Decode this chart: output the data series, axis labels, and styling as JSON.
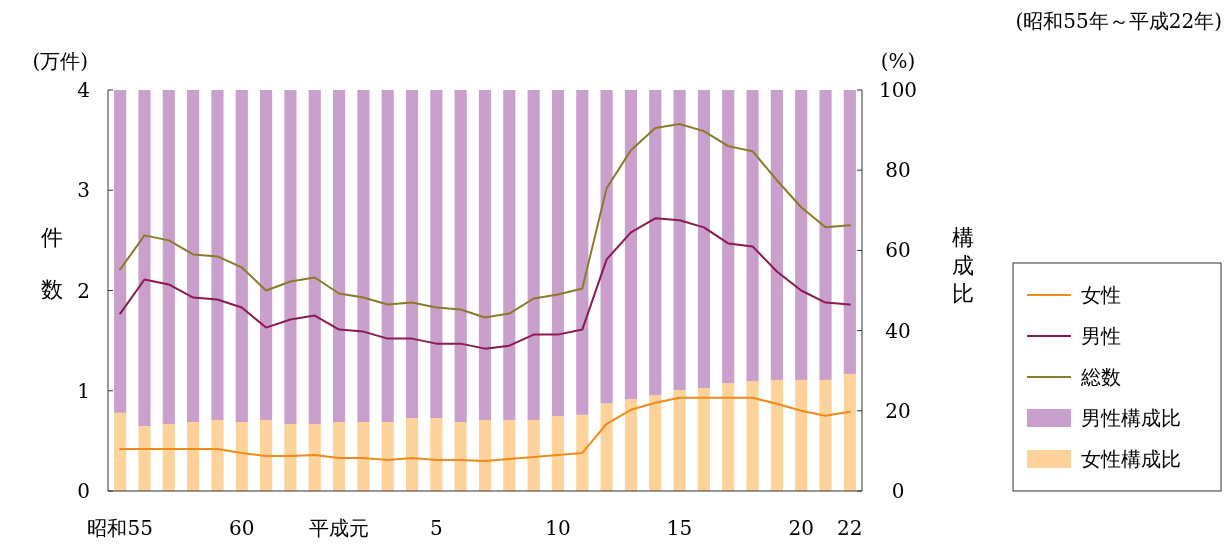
{
  "chart_data": {
    "type": "bar",
    "subtitle": "(昭和55年～平成22年)",
    "ylabel": "件数",
    "y2label": "構成比",
    "annotations": [
      "(万件)",
      "(%)"
    ],
    "categories": [
      "昭和55",
      null,
      null,
      null,
      null,
      "60",
      null,
      null,
      null,
      "平成元",
      null,
      null,
      null,
      "5",
      null,
      null,
      null,
      null,
      "10",
      null,
      null,
      null,
      null,
      "15",
      null,
      null,
      null,
      null,
      "20",
      null,
      "22"
    ],
    "stacked": true,
    "legend": "right",
    "ylim": [
      0,
      4
    ],
    "yticks": [
      0,
      1,
      2,
      3,
      4
    ],
    "y2lim": [
      0,
      100
    ],
    "y2ticks": [
      0,
      20,
      40,
      60,
      80,
      100
    ],
    "series": [
      {
        "name": "女性構成比",
        "axis": "y2",
        "color": "#fdd39b",
        "values": [
          19.5,
          16.2,
          16.7,
          17.2,
          17.7,
          17.2,
          17.7,
          16.7,
          16.7,
          17.2,
          17.2,
          17.2,
          18.2,
          18.2,
          17.2,
          17.7,
          17.7,
          17.7,
          18.7,
          19,
          21.9,
          22.9,
          23.9,
          25.2,
          25.7,
          26.9,
          27.4,
          27.7,
          27.7,
          27.7,
          29.2
        ]
      },
      {
        "name": "男性構成比",
        "axis": "y2",
        "color": "#c9a0cc",
        "values": [
          80.5,
          83.8,
          83.3,
          82.8,
          82.3,
          82.8,
          82.3,
          83.3,
          83.3,
          82.8,
          82.8,
          82.8,
          81.8,
          81.8,
          82.8,
          82.3,
          82.3,
          82.3,
          81.3,
          81,
          78.1,
          77.1,
          76.1,
          74.8,
          74.3,
          73.1,
          72.6,
          72.3,
          72.3,
          72.3,
          70.8
        ]
      },
      {
        "name": "総数",
        "type": "line",
        "color": "#8b7a2a",
        "values": [
          2.21,
          2.55,
          2.5,
          2.36,
          2.34,
          2.23,
          2.0,
          2.09,
          2.13,
          1.97,
          1.93,
          1.86,
          1.88,
          1.83,
          1.81,
          1.73,
          1.77,
          1.92,
          1.96,
          2.02,
          3.02,
          3.4,
          3.62,
          3.66,
          3.59,
          3.44,
          3.39,
          3.1,
          2.83,
          2.63,
          2.65
        ]
      },
      {
        "name": "男性",
        "type": "line",
        "color": "#8b1a50",
        "values": [
          1.77,
          2.11,
          2.06,
          1.93,
          1.91,
          1.83,
          1.63,
          1.71,
          1.75,
          1.61,
          1.59,
          1.52,
          1.52,
          1.47,
          1.47,
          1.42,
          1.45,
          1.56,
          1.56,
          1.61,
          2.31,
          2.58,
          2.72,
          2.7,
          2.63,
          2.47,
          2.44,
          2.19,
          2.0,
          1.88,
          1.86
        ]
      },
      {
        "name": "女性",
        "type": "line",
        "color": "#f08a1a",
        "values": [
          0.42,
          0.42,
          0.42,
          0.42,
          0.42,
          0.38,
          0.35,
          0.35,
          0.36,
          0.33,
          0.33,
          0.31,
          0.33,
          0.31,
          0.31,
          0.3,
          0.32,
          0.34,
          0.36,
          0.38,
          0.67,
          0.81,
          0.88,
          0.93,
          0.93,
          0.93,
          0.93,
          0.87,
          0.8,
          0.75,
          0.79
        ]
      }
    ]
  }
}
